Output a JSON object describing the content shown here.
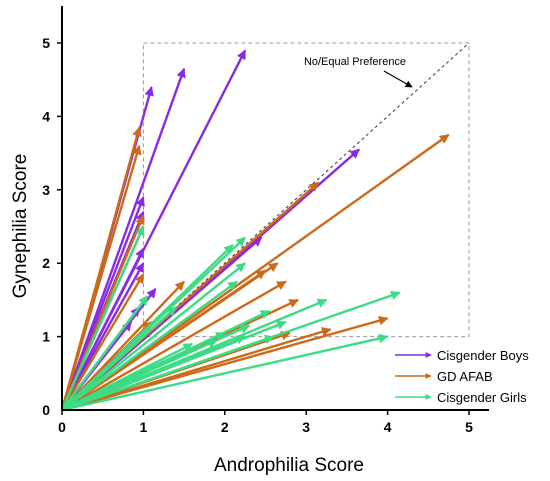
{
  "chart_data": {
    "type": "vector",
    "xlabel": "Androphilia Score",
    "ylabel": "Gynephilia Score",
    "xlim": [
      0,
      5
    ],
    "ylim": [
      0,
      5
    ],
    "xticks": [
      "0",
      "1",
      "2",
      "3",
      "4",
      "5"
    ],
    "yticks": [
      "0",
      "1",
      "2",
      "3",
      "4",
      "5"
    ],
    "legend_position": "bottom-right",
    "region_box": {
      "x": [
        1,
        5
      ],
      "y": [
        1,
        5
      ]
    },
    "annotation": {
      "text": "No/Equal Preference",
      "points_to": [
        4.3,
        4.4
      ]
    },
    "series": [
      {
        "name": "Cisgender Boys",
        "color": "#8a2be2",
        "vectors": [
          [
            2.25,
            4.9
          ],
          [
            1.5,
            4.65
          ],
          [
            1.1,
            4.4
          ],
          [
            3.65,
            3.55
          ],
          [
            1.0,
            2.9
          ],
          [
            1.0,
            2.7
          ],
          [
            1.0,
            2.5
          ],
          [
            1.0,
            2.2
          ],
          [
            1.0,
            2.0
          ],
          [
            2.45,
            2.35
          ],
          [
            1.15,
            1.65
          ],
          [
            1.05,
            1.55
          ],
          [
            0.95,
            1.4
          ],
          [
            0.85,
            1.2
          ]
        ]
      },
      {
        "name": "GD AFAB",
        "color": "#cc6a1a",
        "vectors": [
          [
            0.95,
            3.85
          ],
          [
            0.95,
            3.6
          ],
          [
            4.75,
            3.75
          ],
          [
            3.15,
            3.1
          ],
          [
            1.0,
            2.65
          ],
          [
            2.65,
            2.0
          ],
          [
            2.5,
            1.9
          ],
          [
            1.0,
            1.85
          ],
          [
            2.75,
            1.75
          ],
          [
            1.5,
            1.75
          ],
          [
            2.9,
            1.5
          ],
          [
            1.1,
            1.2
          ],
          [
            4.0,
            1.25
          ],
          [
            3.3,
            1.1
          ],
          [
            2.8,
            1.05
          ]
        ]
      },
      {
        "name": "Cisgender Girls",
        "color": "#3ddc84",
        "vectors": [
          [
            1.0,
            2.5
          ],
          [
            2.25,
            2.35
          ],
          [
            2.1,
            2.25
          ],
          [
            2.25,
            2.0
          ],
          [
            2.15,
            1.75
          ],
          [
            1.05,
            1.55
          ],
          [
            1.4,
            1.4
          ],
          [
            3.25,
            1.5
          ],
          [
            4.15,
            1.6
          ],
          [
            2.55,
            1.35
          ],
          [
            2.75,
            1.2
          ],
          [
            2.3,
            1.15
          ],
          [
            2.6,
            1.0
          ],
          [
            2.25,
            1.0
          ],
          [
            1.9,
            0.95
          ],
          [
            1.6,
            0.9
          ],
          [
            4.0,
            1.0
          ],
          [
            2.0,
            1.05
          ]
        ]
      }
    ]
  }
}
